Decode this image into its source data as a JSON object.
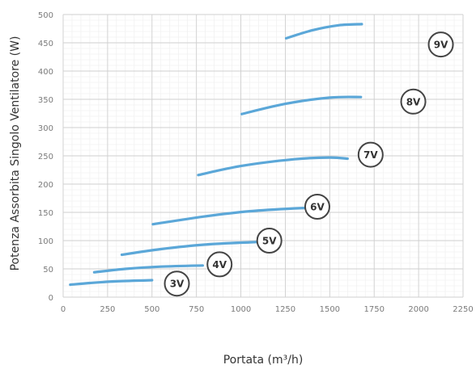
{
  "chart_data": {
    "type": "line",
    "title": "",
    "xlabel": "Portata (m³/h)",
    "ylabel": "Potenza Assorbita Singolo Ventilatore (W)",
    "xlim": [
      0,
      2250
    ],
    "ylim": [
      0,
      500
    ],
    "x_ticks": [
      0,
      250,
      500,
      750,
      1000,
      1250,
      1500,
      1750,
      2000,
      2250
    ],
    "y_ticks": [
      0,
      50,
      100,
      150,
      200,
      250,
      300,
      350,
      400,
      450,
      500
    ],
    "grid": true,
    "minor_grid": true,
    "line_color": "#5ba7d8",
    "series": [
      {
        "name": "3V",
        "x": [
          40,
          150,
          300,
          500
        ],
        "y": [
          22,
          25,
          28,
          30
        ],
        "label_at": [
          640,
          24
        ]
      },
      {
        "name": "4V",
        "x": [
          175,
          350,
          550,
          785
        ],
        "y": [
          44,
          50,
          54,
          56
        ],
        "label_at": [
          880,
          58
        ]
      },
      {
        "name": "5V",
        "x": [
          330,
          550,
          800,
          1050,
          1160
        ],
        "y": [
          75,
          85,
          93,
          97,
          98
        ],
        "label_at": [
          1160,
          100
        ]
      },
      {
        "name": "6V",
        "x": [
          505,
          800,
          1050,
          1300,
          1425
        ],
        "y": [
          129,
          143,
          152,
          157,
          158
        ],
        "label_at": [
          1430,
          160
        ]
      },
      {
        "name": "7V",
        "x": [
          760,
          1000,
          1300,
          1500,
          1600
        ],
        "y": [
          216,
          232,
          244,
          247,
          245
        ],
        "label_at": [
          1730,
          252
        ]
      },
      {
        "name": "8V",
        "x": [
          1005,
          1250,
          1500,
          1675
        ],
        "y": [
          324,
          342,
          353,
          354
        ],
        "label_at": [
          1970,
          346
        ]
      },
      {
        "name": "9V",
        "x": [
          1255,
          1400,
          1550,
          1680
        ],
        "y": [
          458,
          472,
          481,
          483
        ],
        "label_at": [
          2125,
          447
        ]
      }
    ]
  }
}
